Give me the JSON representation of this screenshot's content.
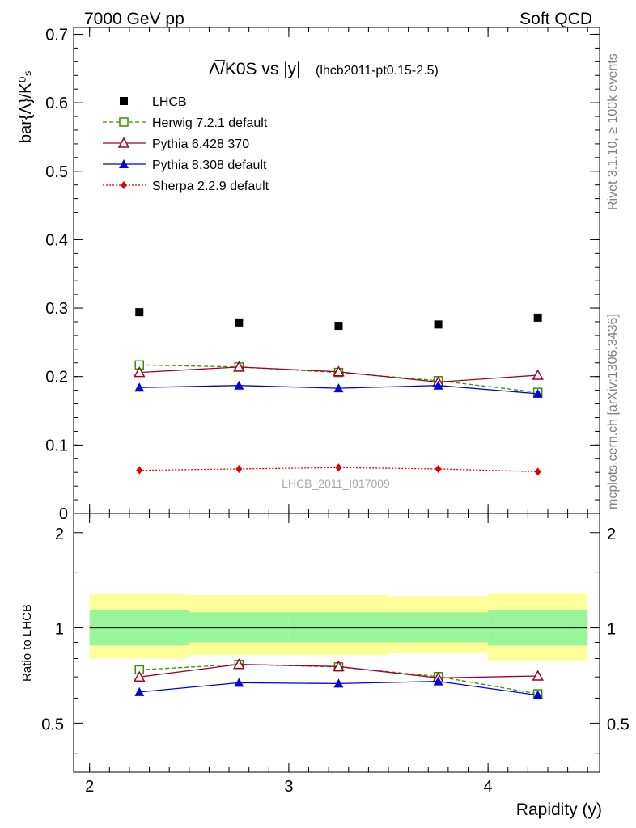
{
  "header": {
    "left": "7000 GeV pp",
    "right": "Soft QCD"
  },
  "side": {
    "rivet": "Rivet 3.1.10, ≥ 100k events",
    "source": "mcplots.cern.ch [arXiv:1306.3436]"
  },
  "chart_data": [
    {
      "type": "scatter",
      "title_main": "Λ̅/K0S vs |y|",
      "title_sub": "(lhcb2011-pt0.15-2.5)",
      "ylabel": "bar{Λ}/K⁰ₛ",
      "watermark": "LHCB_2011_I917009",
      "xlim": [
        1.92,
        4.56
      ],
      "ylim": [
        0,
        0.71
      ],
      "yticks": [
        0,
        0.1,
        0.2,
        0.3,
        0.4,
        0.5,
        0.6,
        0.7
      ],
      "ytick_labels": [
        "0",
        "0.1",
        "0.2",
        "0.3",
        "0.4",
        "0.5",
        "0.6",
        "0.7"
      ],
      "x": [
        2.25,
        2.75,
        3.25,
        3.75,
        4.25
      ],
      "legend_position": "top-left",
      "series": [
        {
          "name": "LHCB",
          "marker": "square-filled",
          "color": "#000000",
          "values": [
            0.294,
            0.279,
            0.274,
            0.276,
            0.286
          ]
        },
        {
          "name": "Herwig 7.2.1 default",
          "marker": "square-open",
          "line": "dashed",
          "color": "#3a8f00",
          "values": [
            0.217,
            0.214,
            0.206,
            0.194,
            0.177
          ]
        },
        {
          "name": "Pythia 6.428 370",
          "marker": "triangle-open",
          "line": "solid",
          "color": "#a0002a",
          "values": [
            0.206,
            0.214,
            0.207,
            0.192,
            0.202
          ]
        },
        {
          "name": "Pythia 8.308 default",
          "marker": "triangle-filled",
          "line": "solid",
          "color": "#0000e0",
          "values": [
            0.184,
            0.187,
            0.183,
            0.187,
            0.175
          ]
        },
        {
          "name": "Sherpa 2.2.9 default",
          "marker": "diamond-filled",
          "line": "dotted",
          "color": "#e00000",
          "values": [
            0.063,
            0.065,
            0.067,
            0.065,
            0.061
          ]
        }
      ]
    },
    {
      "type": "scatter",
      "ylabel": "Ratio to LHCB",
      "xlabel": "Rapidity (y)",
      "xlim": [
        1.92,
        4.56
      ],
      "xticks": [
        2,
        3,
        4
      ],
      "xtick_labels": [
        "2",
        "3",
        "4"
      ],
      "ylim": [
        0.35,
        2.3
      ],
      "scale": "log",
      "yticks": [
        0.5,
        1,
        2
      ],
      "ytick_labels": [
        "0.5",
        "1",
        "2"
      ],
      "x": [
        2.25,
        2.75,
        3.25,
        3.75,
        4.25
      ],
      "bands": {
        "bins": [
          [
            2,
            2.5
          ],
          [
            2.5,
            3
          ],
          [
            3,
            3.5
          ],
          [
            3.5,
            4
          ],
          [
            4,
            4.5
          ]
        ],
        "inner": [
          [
            0.88,
            1.14
          ],
          [
            0.9,
            1.12
          ],
          [
            0.9,
            1.12
          ],
          [
            0.9,
            1.12
          ],
          [
            0.88,
            1.14
          ]
        ],
        "outer": [
          [
            0.8,
            1.28
          ],
          [
            0.82,
            1.27
          ],
          [
            0.82,
            1.27
          ],
          [
            0.83,
            1.26
          ],
          [
            0.79,
            1.29
          ]
        ],
        "inner_color": "#99f599",
        "outer_color": "#ffff99"
      },
      "series": [
        {
          "name": "Herwig 7.2.1 default",
          "marker": "square-open",
          "line": "dashed",
          "color": "#3a8f00",
          "values": [
            0.737,
            0.767,
            0.753,
            0.702,
            0.619
          ]
        },
        {
          "name": "Pythia 6.428 370",
          "marker": "triangle-open",
          "line": "solid",
          "color": "#a0002a",
          "values": [
            0.7,
            0.767,
            0.755,
            0.695,
            0.705
          ]
        },
        {
          "name": "Pythia 8.308 default",
          "marker": "triangle-filled",
          "line": "solid",
          "color": "#0000e0",
          "values": [
            0.627,
            0.671,
            0.667,
            0.678,
            0.613
          ]
        }
      ]
    }
  ]
}
